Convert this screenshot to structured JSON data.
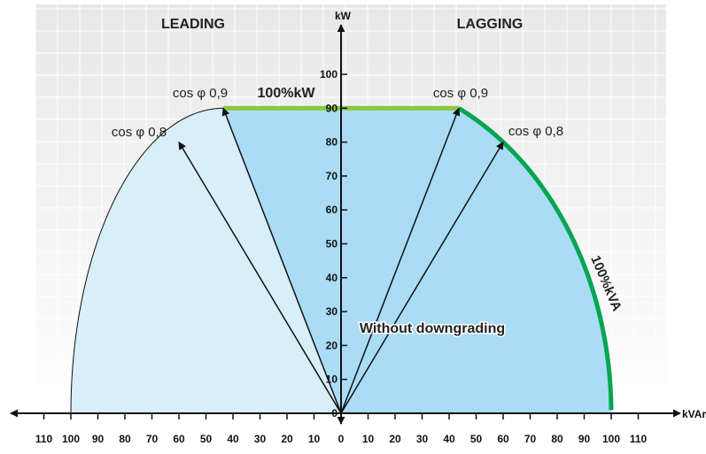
{
  "chart_data": {
    "type": "area",
    "region_labels": {
      "left": "LEADING",
      "right": "LAGGING"
    },
    "y_axis_label": "kW",
    "x_axis_label": "kVAr",
    "y_ticks": [
      "0",
      "10",
      "20",
      "30",
      "40",
      "50",
      "60",
      "70",
      "80",
      "90",
      "100"
    ],
    "x_ticks_left": [
      "110",
      "100",
      "90",
      "80",
      "70",
      "60",
      "50",
      "40",
      "30",
      "20",
      "10",
      "0"
    ],
    "x_ticks_right": [
      "10",
      "20",
      "30",
      "40",
      "50",
      "60",
      "70",
      "80",
      "90",
      "100",
      "110"
    ],
    "x_range": [
      -110,
      110
    ],
    "y_range": [
      0,
      100
    ],
    "kw_limit": {
      "label": "100%kW",
      "value": 90,
      "kvar_range": [
        -43.6,
        43.6
      ],
      "color": "#8dc63f"
    },
    "kva_limit": {
      "label": "100%kVA",
      "radius": 100,
      "color": "#00a651"
    },
    "inner_label": "Without downgrading",
    "power_factor_vectors": [
      {
        "label": "cos φ 0,9",
        "kvar": -43.6,
        "kw": 90
      },
      {
        "label": "cos φ 0,8",
        "kvar": -60,
        "kw": 80
      },
      {
        "label": "cos φ 0,9",
        "kvar": 43.6,
        "kw": 90
      },
      {
        "label": "cos φ 0,8",
        "kvar": 60,
        "kw": 80
      }
    ],
    "colors": {
      "inner_region": "#aadcf6",
      "leading_region": "#d8eef9",
      "grid_bg": "#ebebeb"
    }
  }
}
